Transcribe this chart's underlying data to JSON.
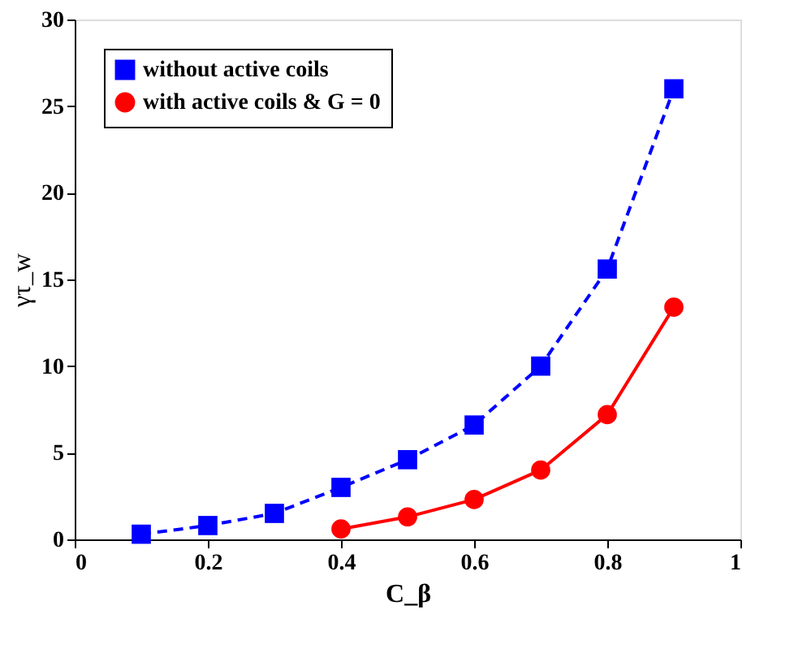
{
  "chart_data": {
    "type": "line",
    "xlabel": "C_β",
    "ylabel": "γτ_w",
    "xlim": [
      0,
      1
    ],
    "xticks": [
      0,
      0.2,
      0.4,
      0.6,
      0.8,
      1
    ],
    "ylim": [
      0,
      30
    ],
    "yticks": [
      0,
      5,
      10,
      15,
      20,
      25,
      30
    ],
    "grid": false,
    "legend": "top left",
    "series": [
      {
        "name": "without active coils",
        "color": "#0000ff",
        "line_style": "dashed",
        "marker": "square",
        "x": [
          0.1,
          0.2,
          0.3,
          0.4,
          0.5,
          0.6,
          0.7,
          0.8,
          0.9
        ],
        "values": [
          0.3,
          0.8,
          1.5,
          3.0,
          4.6,
          6.6,
          10.0,
          15.6,
          26.0
        ]
      },
      {
        "name": "with active coils & G = 0",
        "color": "#ff0000",
        "line_style": "solid",
        "marker": "circle",
        "x": [
          0.4,
          0.5,
          0.6,
          0.7,
          0.8,
          0.9
        ],
        "values": [
          0.6,
          1.3,
          2.3,
          4.0,
          7.2,
          13.4
        ]
      }
    ]
  }
}
